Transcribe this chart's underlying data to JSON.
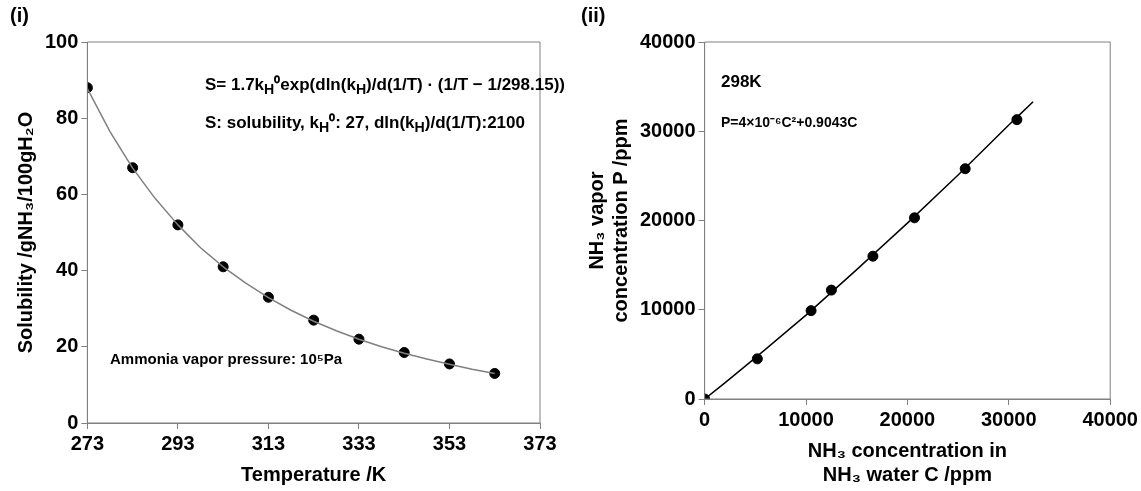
{
  "chart_data": [
    {
      "type": "scatter",
      "title": "(i)",
      "xlabel": "Temperature /K",
      "ylabel": "Solubility /gNH₃/100gH₂O",
      "xlim": [
        273,
        373
      ],
      "xticks": [
        273,
        293,
        313,
        333,
        353,
        373
      ],
      "ylim": [
        0,
        100
      ],
      "yticks": [
        0,
        20,
        40,
        60,
        80,
        100
      ],
      "annotations": [
        "S= 1.7k$_{H}$⁰exp(dln(k$_{H}$)/d(1/T) · (1/T − 1/298.15))",
        "S: solubility, k$_{H}$⁰: 27, dln(k$_{H}$)/d(1/T):2100",
        "Ammonia vapor pressure: 10⁵Pa"
      ],
      "series": [
        {
          "type": "scatter",
          "marker": "circle",
          "color": "#000000",
          "x": [
            273,
            283,
            293,
            303,
            313,
            323,
            333,
            343,
            353,
            363
          ],
          "values": [
            88,
            67,
            52,
            41,
            33,
            27,
            22,
            18.5,
            15.5,
            13
          ]
        },
        {
          "type": "line",
          "marker": "none",
          "color": "#808080",
          "x": [
            273,
            278,
            283,
            288,
            293,
            298,
            303,
            308,
            313,
            318,
            323,
            328,
            333,
            338,
            343,
            348,
            353,
            358,
            363
          ],
          "values": [
            87.8,
            76.5,
            66.9,
            58.9,
            52,
            46,
            41,
            36.7,
            32.9,
            29.6,
            26.7,
            24.2,
            22,
            20,
            18.3,
            16.8,
            15.4,
            14.1,
            13
          ]
        }
      ]
    },
    {
      "type": "scatter",
      "title": "(ii)",
      "xlabel": "NH₃ concentration in\nNH₃ water C /ppm",
      "ylabel": "NH₃ vapor\nconcentration P /ppm",
      "xlim": [
        0,
        40000
      ],
      "xticks": [
        0,
        10000,
        20000,
        30000,
        40000
      ],
      "ylim": [
        0,
        40000
      ],
      "yticks": [
        0,
        10000,
        20000,
        30000,
        40000
      ],
      "annotations": [
        "298K",
        "P=4×10⁻⁶C²+0.9043C"
      ],
      "series": [
        {
          "type": "scatter",
          "marker": "circle",
          "color": "#000000",
          "x": [
            0,
            5200,
            10500,
            12500,
            16600,
            20700,
            25700,
            30800
          ],
          "values": [
            0,
            4500,
            9900,
            12200,
            16000,
            20300,
            25800,
            31300
          ]
        },
        {
          "type": "line",
          "marker": "none",
          "color": "#000000",
          "x": [
            0,
            2000,
            5000,
            10000,
            15000,
            20000,
            25000,
            30000,
            32400
          ],
          "values": [
            0,
            1800,
            4600,
            9400,
            14500,
            19700,
            25100,
            30700,
            33300
          ]
        }
      ]
    }
  ]
}
